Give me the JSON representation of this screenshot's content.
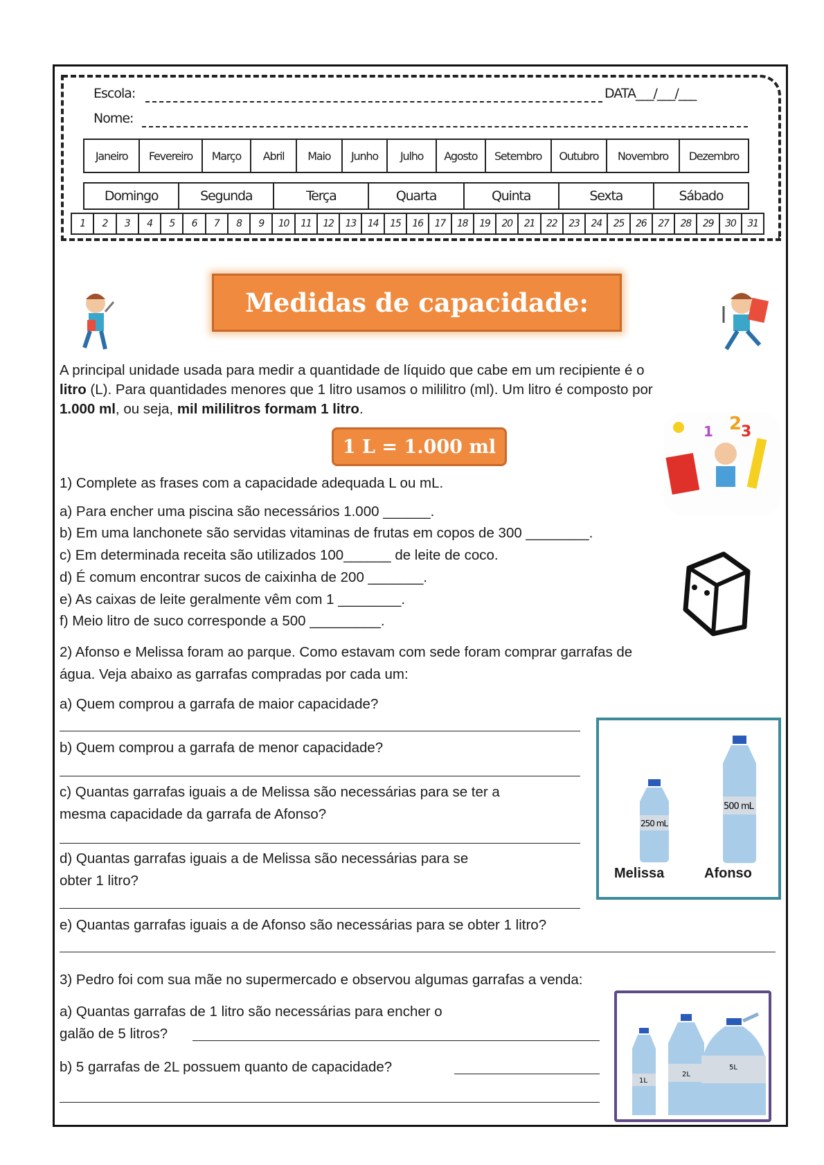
{
  "header": {
    "school_label": "Escola:",
    "date_label": "DATA___/___/___",
    "name_label": "Nome:",
    "months": [
      "Janeiro",
      "Fevereiro",
      "Março",
      "Abril",
      "Maio",
      "Junho",
      "Julho",
      "Agosto",
      "Setembro",
      "Outubro",
      "Novembro",
      "Dezembro"
    ],
    "weekdays": [
      "Domingo",
      "Segunda",
      "Terça",
      "Quarta",
      "Quinta",
      "Sexta",
      "Sábado"
    ],
    "days": [
      "1",
      "2",
      "3",
      "4",
      "5",
      "6",
      "7",
      "8",
      "9",
      "10",
      "11",
      "12",
      "13",
      "14",
      "15",
      "16",
      "17",
      "18",
      "19",
      "20",
      "21",
      "22",
      "23",
      "24",
      "25",
      "26",
      "27",
      "28",
      "29",
      "30",
      "31"
    ]
  },
  "title": "Medidas de capacidade:",
  "intro": {
    "p1": "A principal unidade usada para medir a quantidade de líquido que cabe em um recipiente é o",
    "p2a": "litro",
    "p2b": " (L). Para quantidades menores que 1 litro usamos o mililitro (ml). Um litro é composto por",
    "p3a": "1.000 ml",
    "p3b": ", ou seja, ",
    "p3c": "mil mililitros formam 1 litro",
    "p3d": "."
  },
  "formula": "1 L = 1.000 ml",
  "q1": {
    "heading": "1) Complete as frases com a capacidade adequada L ou mL.",
    "items": [
      "a) Para encher uma piscina são necessários 1.000 ______.",
      "b) Em uma lanchonete são servidas vitaminas de frutas em copos de 300 ________.",
      "c) Em determinada receita são utilizados 100______ de leite de coco.",
      "d) É comum encontrar sucos de caixinha de 200 _______.",
      "e) As caixas de leite geralmente vêm com 1 ________.",
      "f) Meio litro de suco corresponde a 500 _________."
    ]
  },
  "q2": {
    "heading1": "2) Afonso e Melissa foram ao parque. Como estavam com sede foram comprar garrafas de",
    "heading2": "água. Veja abaixo as garrafas compradas por cada um:",
    "a": "a) Quem comprou a garrafa de maior capacidade?",
    "b": "b) Quem comprou a garrafa de menor capacidade?",
    "c1": "c) Quantas garrafas iguais a de Melissa são necessárias para se ter a",
    "c2": "mesma capacidade da garrafa de Afonso?",
    "d1": "d) Quantas garrafas iguais a de Melissa são necessárias para se",
    "d2": "obter 1 litro?",
    "e": "e) Quantas garrafas iguais a de Afonso são necessárias para se obter 1 litro?",
    "bottles": [
      {
        "name": "Melissa",
        "label": "250 mL"
      },
      {
        "name": "Afonso",
        "label": "500 mL"
      }
    ]
  },
  "q3": {
    "heading": "3) Pedro foi com sua mãe no supermercado e observou algumas garrafas a venda:",
    "a1": "a) Quantas garrafas de 1 litro são necessárias para encher o",
    "a2": "galão de 5 litros? ",
    "b": "b) 5 garrafas de 2L possuem quanto de capacidade?",
    "bottles": [
      "1L",
      "2L",
      "5L"
    ]
  },
  "colors": {
    "orange": "#ef8a3e",
    "teal": "#3a8a9a",
    "purple": "#5e4a86"
  }
}
